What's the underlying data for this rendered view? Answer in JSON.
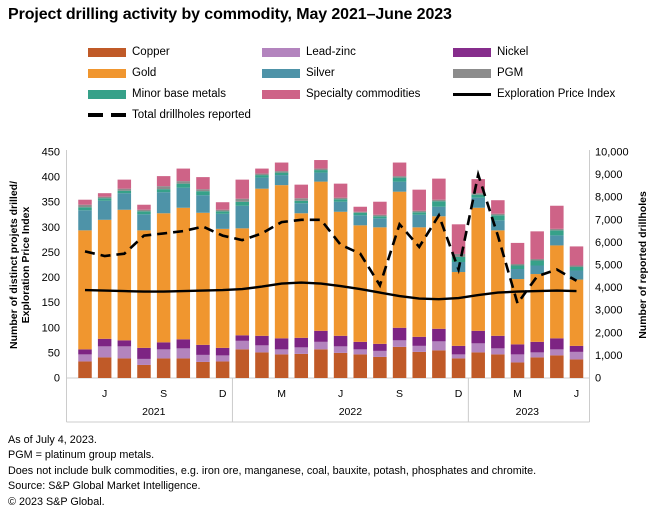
{
  "title": "Project drilling activity by commodity, May 2021–June 2023",
  "legend": {
    "items": [
      {
        "label": "Copper",
        "color": "#C05A28",
        "type": "swatch",
        "col": 0,
        "row": 0
      },
      {
        "label": "Gold",
        "color": "#F0962F",
        "type": "swatch",
        "col": 0,
        "row": 1
      },
      {
        "label": "Minor base metals",
        "color": "#36A189",
        "type": "swatch",
        "col": 0,
        "row": 2
      },
      {
        "label": "Total drillholes reported",
        "color": "#000000",
        "type": "dashed-line",
        "col": 0,
        "row": 3
      },
      {
        "label": "Lead-zinc",
        "color": "#B384BE",
        "type": "swatch",
        "col": 1,
        "row": 0
      },
      {
        "label": "Silver",
        "color": "#4E93A8",
        "type": "swatch",
        "col": 1,
        "row": 1
      },
      {
        "label": "Specialty commodities",
        "color": "#CE6387",
        "type": "swatch",
        "col": 1,
        "row": 2
      },
      {
        "label": "Nickel",
        "color": "#862D8C",
        "type": "swatch",
        "col": 2,
        "row": 0
      },
      {
        "label": "PGM",
        "color": "#8C8C8C",
        "type": "swatch",
        "col": 2,
        "row": 1
      },
      {
        "label": "Exploration Price Index",
        "color": "#000000",
        "type": "solid-line",
        "col": 2,
        "row": 2
      }
    ]
  },
  "chart_data": {
    "type": "bar",
    "subtype": "stacked-bars-with-lines",
    "categories": [
      "May 2021",
      "Jun 2021",
      "Jul 2021",
      "Aug 2021",
      "Sep 2021",
      "Oct 2021",
      "Nov 2021",
      "Dec 2021",
      "Jan 2022",
      "Feb 2022",
      "Mar 2022",
      "Apr 2022",
      "May 2022",
      "Jun 2022",
      "Jul 2022",
      "Aug 2022",
      "Sep 2022",
      "Oct 2022",
      "Nov 2022",
      "Dec 2022",
      "Jan 2023",
      "Feb 2023",
      "Mar 2023",
      "Apr 2023",
      "May 2023",
      "Jun 2023"
    ],
    "month_tick_labels": [
      "",
      "J",
      "",
      "",
      "S",
      "",
      "",
      "D",
      "",
      "",
      "M",
      "",
      "",
      "J",
      "",
      "",
      "S",
      "",
      "",
      "D",
      "",
      "",
      "M",
      "",
      "",
      "J"
    ],
    "year_groups": [
      {
        "label": "2021",
        "start": 0,
        "end": 7
      },
      {
        "label": "2022",
        "start": 8,
        "end": 19
      },
      {
        "label": "2023",
        "start": 20,
        "end": 25
      }
    ],
    "series": [
      {
        "name": "Copper",
        "color": "#C05A28",
        "values": [
          33,
          41,
          39,
          26,
          39,
          39,
          32,
          33,
          57,
          51,
          47,
          48,
          57,
          50,
          47,
          42,
          62,
          52,
          55,
          39,
          51,
          47,
          31,
          41,
          45,
          37
        ]
      },
      {
        "name": "Lead-zinc",
        "color": "#B384BE",
        "values": [
          14,
          22,
          24,
          12,
          18,
          20,
          14,
          12,
          17,
          14,
          10,
          13,
          15,
          13,
          10,
          12,
          13,
          12,
          18,
          8,
          18,
          12,
          16,
          10,
          12,
          15
        ]
      },
      {
        "name": "Nickel",
        "color": "#7D2483",
        "values": [
          10,
          15,
          12,
          22,
          14,
          18,
          20,
          15,
          11,
          19,
          22,
          19,
          22,
          21,
          15,
          14,
          25,
          18,
          25,
          17,
          25,
          25,
          20,
          21,
          22,
          12
        ]
      },
      {
        "name": "Gold",
        "color": "#F0962F",
        "values": [
          237,
          237,
          260,
          234,
          257,
          262,
          263,
          237,
          213,
          293,
          305,
          248,
          297,
          247,
          232,
          232,
          271,
          218,
          224,
          147,
          245,
          210,
          130,
          135,
          185,
          132
        ]
      },
      {
        "name": "Silver",
        "color": "#4E93A8",
        "values": [
          40,
          38,
          33,
          32,
          42,
          40,
          35,
          30,
          45,
          22,
          20,
          20,
          18,
          20,
          20,
          18,
          20,
          25,
          19,
          20,
          20,
          20,
          20,
          17,
          20,
          18
        ]
      },
      {
        "name": "Minor base metals",
        "color": "#36A189",
        "values": [
          6,
          5,
          5,
          6,
          6,
          8,
          8,
          5,
          8,
          5,
          5,
          5,
          5,
          5,
          5,
          4,
          8,
          5,
          11,
          10,
          6,
          10,
          7,
          10,
          10,
          7
        ]
      },
      {
        "name": "PGM",
        "color": "#8C8C8C",
        "values": [
          5,
          3,
          4,
          3,
          6,
          5,
          4,
          3,
          6,
          3,
          3,
          5,
          3,
          3,
          2,
          3,
          3,
          3,
          3,
          6,
          3,
          3,
          3,
          3,
          3,
          3
        ]
      },
      {
        "name": "Specialty commodities",
        "color": "#CE6387",
        "values": [
          10,
          7,
          18,
          10,
          20,
          25,
          24,
          15,
          38,
          10,
          17,
          27,
          17,
          28,
          10,
          26,
          27,
          42,
          42,
          59,
          28,
          27,
          42,
          55,
          46,
          38
        ]
      }
    ],
    "lines": [
      {
        "name": "Exploration Price Index",
        "axis": "left",
        "style": "solid",
        "color": "#000000",
        "values": [
          175,
          174,
          173,
          172,
          172,
          173,
          174,
          175,
          177,
          182,
          188,
          190,
          188,
          183,
          177,
          170,
          163,
          158,
          157,
          159,
          165,
          170,
          172,
          173,
          174,
          173
        ]
      },
      {
        "name": "Total drillholes reported",
        "axis": "right",
        "style": "dashed",
        "color": "#000000",
        "values": [
          5600,
          5400,
          5500,
          6300,
          6400,
          6500,
          6700,
          6300,
          6100,
          6400,
          6900,
          7000,
          7000,
          5900,
          5500,
          4100,
          6800,
          5800,
          7200,
          4800,
          9000,
          6300,
          3300,
          4500,
          4800,
          4300
        ]
      }
    ],
    "left_axis": {
      "title_lines": [
        "Number of distinct projets drilled/",
        "Exploration Price Index"
      ],
      "min": 0,
      "max": 450,
      "step": 50
    },
    "right_axis": {
      "title": "Number of reported drillholes",
      "min": 0,
      "max": 10000,
      "step": 1000
    },
    "grid": "off",
    "legend_position": "top"
  },
  "footnotes": [
    "As of July 4, 2023.",
    "PGM = platinum group metals.",
    "Does not include bulk commodities, e.g. iron ore, manganese, coal, bauxite, potash, phosphates and chromite.",
    "Source: S&P Global Market Intelligence.",
    "© 2023 S&P Global."
  ]
}
